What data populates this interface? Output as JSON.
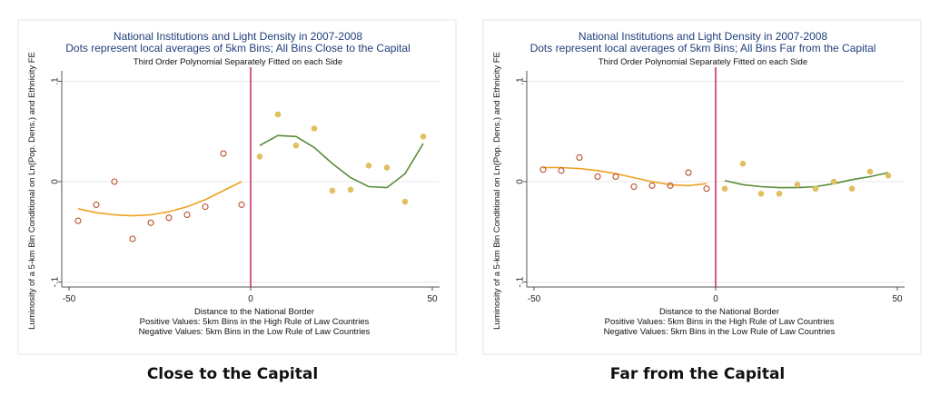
{
  "chart_data": [
    {
      "type": "scatter",
      "title": "National Institutions and Light Density in 2007-2008",
      "subtitle": "Dots represent local averages of 5km Bins; All Bins Close to the Capital",
      "note": "Third Order Polynomial Separately Fitted on each Side",
      "xlabel": [
        "Distance to the National Border",
        "Positive  Values: 5km Bins in the High Rule of Law Countries",
        "Negative Values: 5km Bins in the Low Rule of Law Countries"
      ],
      "ylabel": "Luminosity of a 5-km Bin Conditional on Ln(Pop. Dens.) and Ethnicity FE",
      "xlim": [
        -52,
        52
      ],
      "ylim": [
        -0.105,
        0.105
      ],
      "xticks": [
        -50,
        0,
        50
      ],
      "xtick_labels": [
        "-50",
        "0",
        "50"
      ],
      "yticks": [
        0.1,
        0,
        -0.1
      ],
      "ytick_labels": [
        ".1",
        "0",
        "-.1"
      ],
      "grid": true,
      "border_x": 0,
      "caption": "Close to the Capital",
      "series": [
        {
          "side": "negative",
          "marker": "hollow",
          "color": "#b84f2a",
          "line_color": "#f0a020",
          "x": [
            -47.5,
            -42.5,
            -37.5,
            -32.5,
            -27.5,
            -22.5,
            -17.5,
            -12.5,
            -7.5,
            -2.5
          ],
          "y": [
            -0.039,
            -0.023,
            0.0,
            -0.057,
            -0.041,
            -0.036,
            -0.033,
            -0.025,
            0.028,
            -0.023
          ],
          "fit_x": [
            -47.5,
            -42.5,
            -37.5,
            -32.5,
            -27.5,
            -22.5,
            -17.5,
            -12.5,
            -7.5,
            -2.5
          ],
          "fit_y": [
            -0.027,
            -0.031,
            -0.033,
            -0.034,
            -0.033,
            -0.03,
            -0.025,
            -0.018,
            -0.009,
            0.0
          ]
        },
        {
          "side": "positive",
          "marker": "filled",
          "color": "#e0c060",
          "line_color": "#5a8a3a",
          "x": [
            2.5,
            7.5,
            12.5,
            17.5,
            22.5,
            27.5,
            32.5,
            37.5,
            42.5,
            47.5
          ],
          "y": [
            0.025,
            0.067,
            0.036,
            0.053,
            -0.009,
            -0.008,
            0.016,
            0.014,
            -0.02,
            0.045
          ],
          "fit_x": [
            2.5,
            7.5,
            12.5,
            17.5,
            22.5,
            27.5,
            32.5,
            37.5,
            42.5,
            47.5
          ],
          "fit_y": [
            0.036,
            0.046,
            0.045,
            0.034,
            0.018,
            0.004,
            -0.005,
            -0.006,
            0.008,
            0.038
          ]
        }
      ]
    },
    {
      "type": "scatter",
      "title": "National Institutions and Light Density in 2007-2008",
      "subtitle": "Dots represent local averages of 5km Bins; All Bins Far from the Capital",
      "note": "Third Order Polynomial Separately Fitted on each Side",
      "xlabel": [
        "Distance to the National Border",
        "Positive  Values: 5km Bins in the High Rule of Law Countries",
        "Negative Values: 5km Bins in the Low Rule of Law Countries"
      ],
      "ylabel": "Luminosity of a 5-km Bin Conditional on Ln(Pop. Dens.) and Ethnicity FE",
      "xlim": [
        -52,
        52
      ],
      "ylim": [
        -0.105,
        0.105
      ],
      "xticks": [
        -50,
        0,
        50
      ],
      "xtick_labels": [
        "-50",
        "0",
        "50"
      ],
      "yticks": [
        0.1,
        0,
        -0.1
      ],
      "ytick_labels": [
        ".1",
        "0",
        "-.1"
      ],
      "grid": true,
      "border_x": 0,
      "caption": "Far from the Capital",
      "series": [
        {
          "side": "negative",
          "marker": "hollow",
          "color": "#b84f2a",
          "line_color": "#f0a020",
          "x": [
            -47.5,
            -42.5,
            -37.5,
            -32.5,
            -27.5,
            -22.5,
            -17.5,
            -12.5,
            -7.5,
            -2.5
          ],
          "y": [
            0.012,
            0.011,
            0.024,
            0.005,
            0.005,
            -0.005,
            -0.004,
            -0.004,
            0.009,
            -0.007
          ],
          "fit_x": [
            -47.5,
            -42.5,
            -37.5,
            -32.5,
            -27.5,
            -22.5,
            -17.5,
            -12.5,
            -7.5,
            -2.5
          ],
          "fit_y": [
            0.014,
            0.014,
            0.013,
            0.011,
            0.008,
            0.004,
            0.0,
            -0.003,
            -0.004,
            -0.002
          ]
        },
        {
          "side": "positive",
          "marker": "filled",
          "color": "#e0c060",
          "line_color": "#5a8a3a",
          "x": [
            2.5,
            7.5,
            12.5,
            17.5,
            22.5,
            27.5,
            32.5,
            37.5,
            42.5,
            47.5
          ],
          "y": [
            -0.007,
            0.018,
            -0.012,
            -0.012,
            -0.003,
            -0.007,
            0.0,
            -0.007,
            0.01,
            0.006
          ],
          "fit_x": [
            2.5,
            7.5,
            12.5,
            17.5,
            22.5,
            27.5,
            32.5,
            37.5,
            42.5,
            47.5
          ],
          "fit_y": [
            0.001,
            -0.003,
            -0.005,
            -0.006,
            -0.006,
            -0.005,
            -0.002,
            0.002,
            0.005,
            0.009
          ]
        }
      ]
    }
  ]
}
